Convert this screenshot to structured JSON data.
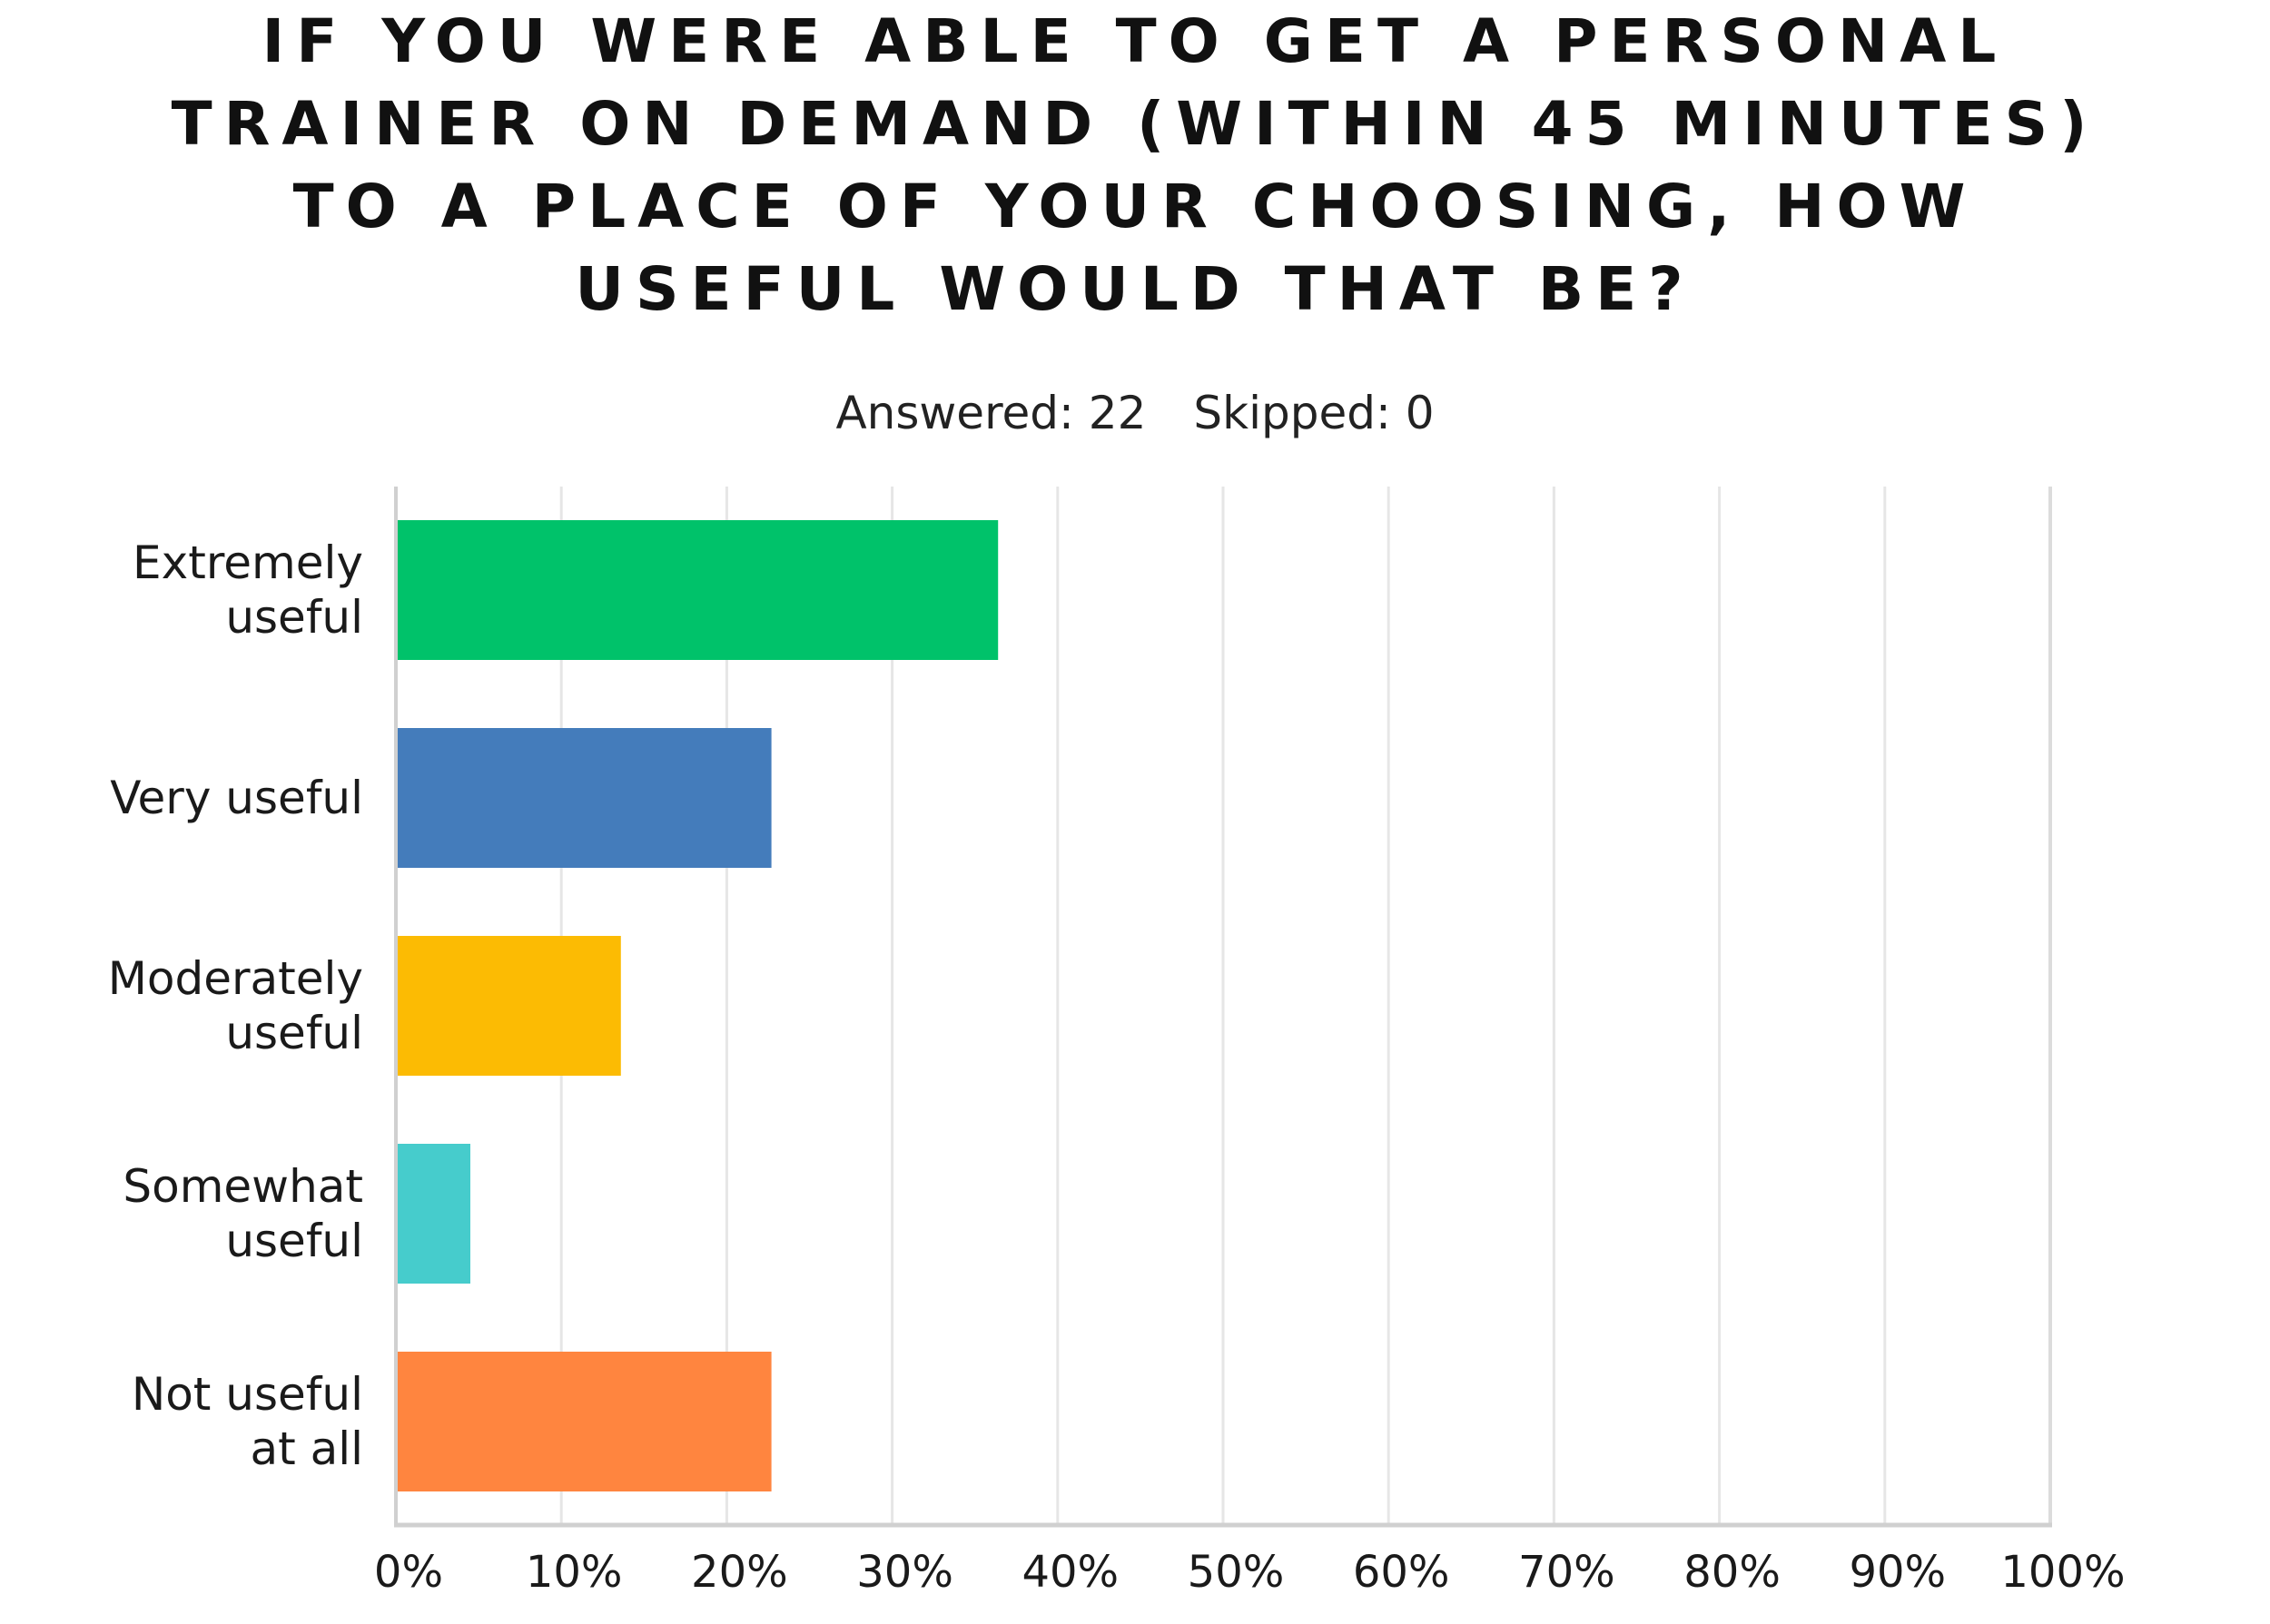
{
  "title_lines": [
    "IF YOU WERE ABLE TO GET A PERSONAL",
    "TRAINER ON DEMAND (WITHIN 45 MINUTES)",
    "TO A PLACE OF YOUR CHOOSING, HOW",
    "USEFUL WOULD THAT BE?"
  ],
  "summary": {
    "answered": "Answered: 22",
    "skipped": "Skipped: 0"
  },
  "chart_data": {
    "type": "bar",
    "orientation": "horizontal",
    "title": "IF YOU WERE ABLE TO GET A PERSONAL TRAINER ON DEMAND (WITHIN 45 MINUTES) TO A PLACE OF YOUR CHOOSING, HOW USEFUL WOULD THAT BE?",
    "categories": [
      [
        "Extremely",
        "useful"
      ],
      [
        "Very useful"
      ],
      [
        "Moderately",
        "useful"
      ],
      [
        "Somewhat",
        "useful"
      ],
      [
        "Not useful",
        "at all"
      ]
    ],
    "values": [
      36.4,
      22.7,
      13.6,
      4.5,
      22.7
    ],
    "colors": [
      "#00c26a",
      "#447cbb",
      "#fcbb03",
      "#46cccc",
      "#ff853f"
    ],
    "xlim": [
      0,
      100
    ],
    "x_ticks": [
      0,
      10,
      20,
      30,
      40,
      50,
      60,
      70,
      80,
      90,
      100
    ],
    "x_tick_labels": [
      "0%",
      "10%",
      "20%",
      "30%",
      "40%",
      "50%",
      "60%",
      "70%",
      "80%",
      "90%",
      "100%"
    ],
    "grid": true,
    "xlabel": "",
    "ylabel": ""
  }
}
